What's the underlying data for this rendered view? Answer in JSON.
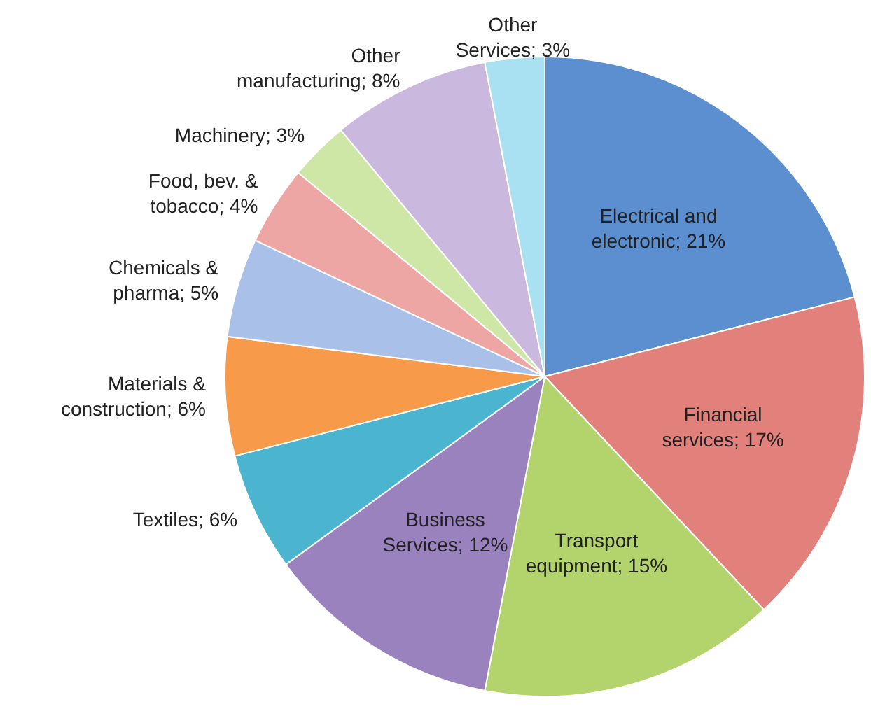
{
  "chart_data": {
    "type": "pie",
    "categories": [
      "Electrical and electronic",
      "Financial services",
      "Transport equipment",
      "Business Services",
      "Textiles",
      "Materials & construction",
      "Chemicals & pharma",
      "Food, bev. & tobacco",
      "Machinery",
      "Other manufacturing",
      "Other Services"
    ],
    "value_labels": [
      "21%",
      "17%",
      "15%",
      "12%",
      "6%",
      "6%",
      "5%",
      "4%",
      "3%",
      "8%",
      "3%"
    ],
    "values": [
      21,
      17,
      15,
      12,
      6,
      6,
      5,
      4,
      3,
      8,
      3
    ],
    "colors": [
      "#5b8fd0",
      "#e2807c",
      "#b3d46c",
      "#9a82bf",
      "#4bb5d0",
      "#f79a4a",
      "#a9c0e8",
      "#eda6a3",
      "#cfe7a6",
      "#cbb8df",
      "#a9e0f2"
    ],
    "legend": false
  }
}
